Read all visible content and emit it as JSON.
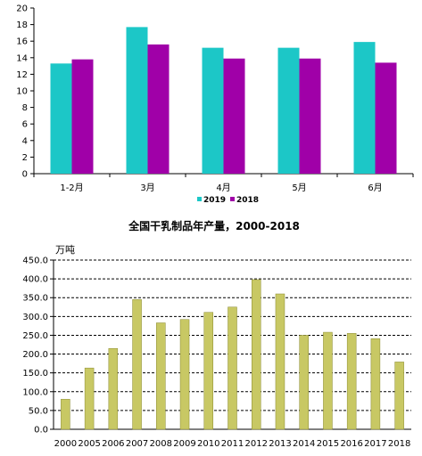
{
  "colors": {
    "series_2019": "#1cc7c7",
    "series_2018": "#a000a8",
    "annual_bar": "#c8c864",
    "axis": "#000000",
    "grid_dashed": "#000000",
    "page_background": "#ffffff"
  },
  "chart_data": [
    {
      "type": "bar",
      "title": "",
      "xlabel": "",
      "ylabel": "",
      "categories": [
        "1-2月",
        "3月",
        "4月",
        "5月",
        "6月"
      ],
      "series": [
        {
          "name": "2019",
          "values": [
            13.3,
            17.7,
            15.2,
            15.2,
            15.9
          ]
        },
        {
          "name": "2018",
          "values": [
            13.8,
            15.6,
            13.9,
            13.9,
            13.4
          ]
        }
      ],
      "ylim": [
        0,
        20
      ],
      "yticks": [
        "0",
        "2",
        "4",
        "6",
        "8",
        "10",
        "12",
        "14",
        "16",
        "18",
        "20"
      ],
      "grid": false,
      "legend": {
        "placement": "bottom-center",
        "entries": [
          "2019",
          "2018"
        ]
      }
    },
    {
      "type": "bar",
      "title": "全国干乳制品年产量，2000-2018",
      "unit_label": "万吨",
      "xlabel": "",
      "ylabel": "",
      "categories": [
        "2000",
        "2005",
        "2006",
        "2007",
        "2008",
        "2009",
        "2010",
        "2011",
        "2012",
        "2013",
        "2014",
        "2015",
        "2016",
        "2017",
        "2018"
      ],
      "values": [
        80,
        163,
        215,
        345,
        283,
        292,
        311,
        325,
        398,
        360,
        250,
        258,
        255,
        241,
        179
      ],
      "ylim": [
        0,
        450
      ],
      "yticks": [
        "0.0",
        "50.0",
        "100.0",
        "150.0",
        "200.0",
        "250.0",
        "300.0",
        "350.0",
        "400.0",
        "450.0"
      ],
      "grid": "dashed horizontal",
      "legend": null
    }
  ]
}
